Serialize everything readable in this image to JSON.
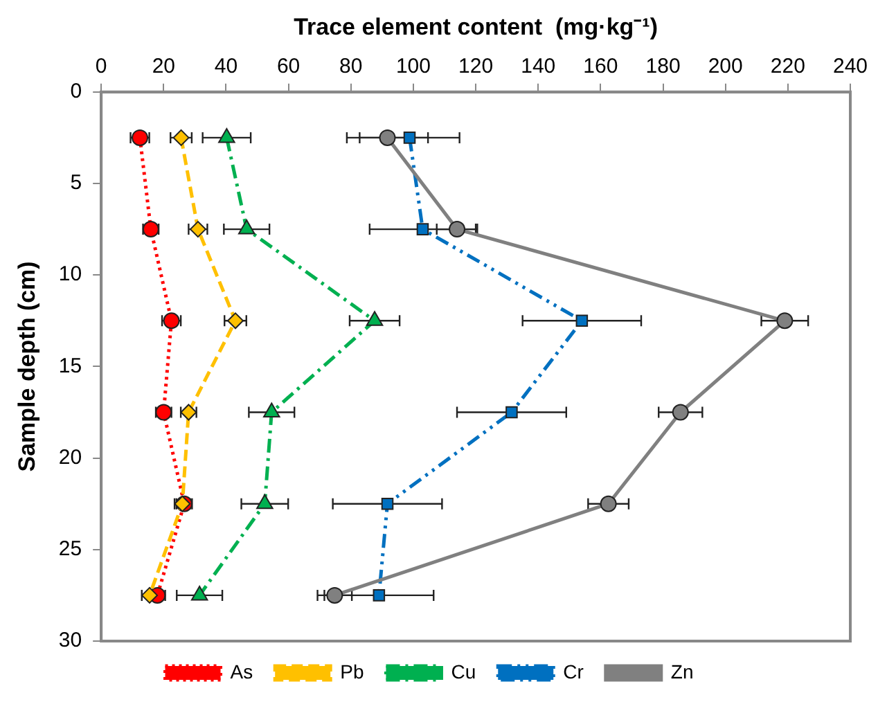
{
  "chart_data": {
    "type": "line",
    "xlabel": "Trace element content  (mg·kg⁻¹)",
    "ylabel": "Sample depth (cm)",
    "xlim": [
      0,
      240
    ],
    "xticks": [
      0,
      20,
      40,
      60,
      80,
      100,
      120,
      140,
      160,
      180,
      200,
      220,
      240
    ],
    "ylim": [
      30,
      0
    ],
    "yticks": [
      0,
      5,
      10,
      15,
      20,
      25,
      30
    ],
    "grid": false,
    "legend": "bottom",
    "series": [
      {
        "name": "As",
        "color": "#ff0000",
        "marker": "circle",
        "line_style": "dotted",
        "x": [
          12.4,
          15.9,
          22.5,
          20,
          26.6,
          18
        ],
        "values": [
          2.5,
          7.5,
          12.5,
          17.5,
          22.5,
          27.5
        ],
        "xerrors": [
          3,
          2.5,
          3,
          2.5,
          2.5,
          2.5
        ]
      },
      {
        "name": "Pb",
        "color": "#ffc000",
        "marker": "diamond",
        "line_style": "dashed",
        "x": [
          25.6,
          31,
          43,
          28,
          26,
          15.5
        ],
        "values": [
          2.5,
          7.5,
          12.5,
          17.5,
          22.5,
          27.5
        ],
        "xerrors": [
          3.4,
          3,
          3.5,
          2.5,
          2.5,
          2.5
        ]
      },
      {
        "name": "Cu",
        "color": "#00b050",
        "marker": "triangle",
        "line_style": "dashdot",
        "x": [
          40.2,
          46.6,
          87.6,
          54.6,
          52.4,
          31.5
        ],
        "values": [
          2.5,
          7.5,
          12.5,
          17.5,
          22.5,
          27.5
        ],
        "xerrors": [
          7.7,
          7.3,
          8,
          7.3,
          7.5,
          7.3
        ]
      },
      {
        "name": "Cr",
        "color": "#0070c0",
        "marker": "square",
        "line_style": "dashdotdot",
        "x": [
          98.8,
          103,
          154,
          131.5,
          91.7,
          89
        ],
        "values": [
          2.5,
          7.5,
          12.5,
          17.5,
          22.5,
          27.5
        ],
        "xerrors": [
          16,
          17,
          19,
          17.5,
          17.5,
          17.5
        ]
      },
      {
        "name": "Zn",
        "color": "#808080",
        "marker": "circle",
        "line_style": "solid",
        "x": [
          91.7,
          114,
          219,
          185.6,
          162.5,
          74.8
        ],
        "values": [
          2.5,
          7.5,
          12.5,
          17.5,
          22.5,
          27.5
        ],
        "xerrors": [
          13,
          6.5,
          7.5,
          7,
          6.5,
          5.5
        ]
      }
    ]
  }
}
